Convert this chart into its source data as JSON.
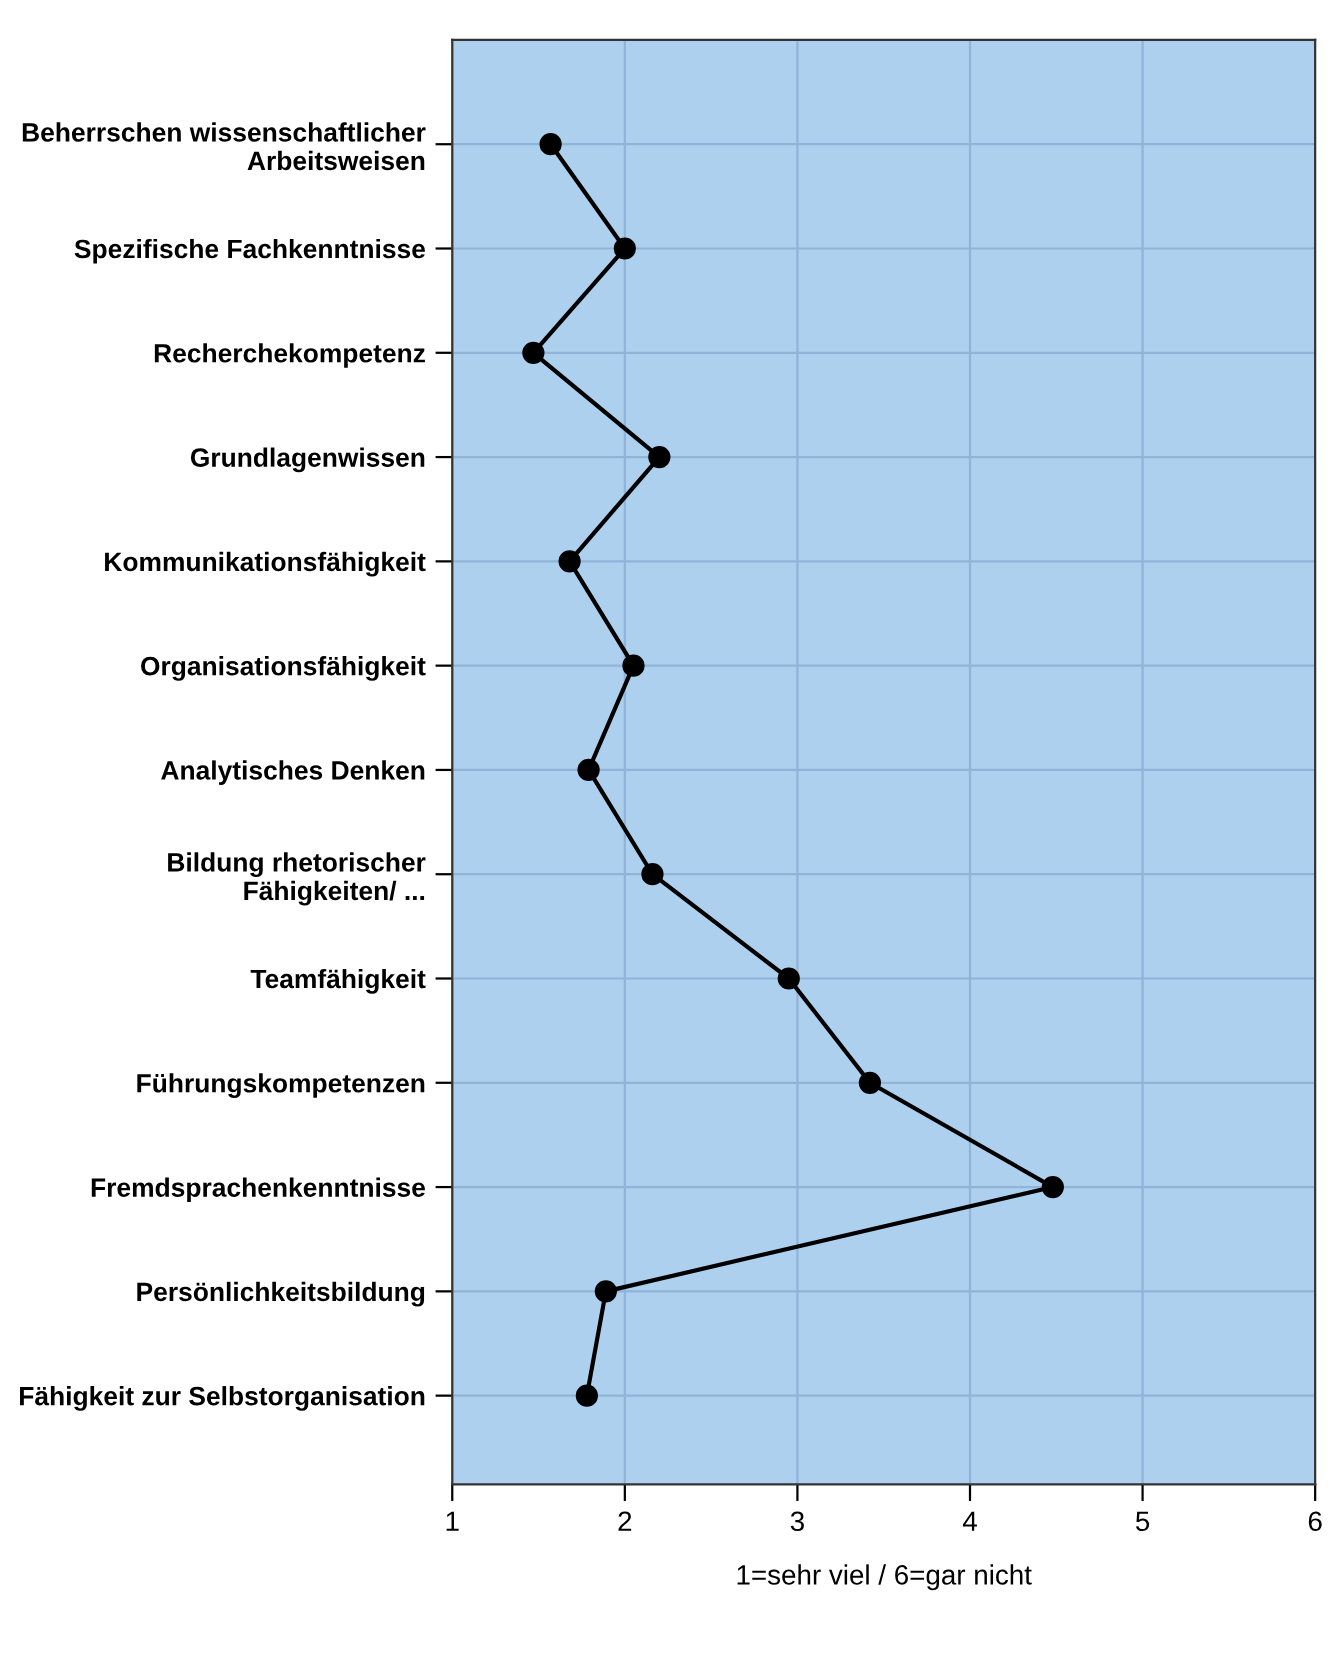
{
  "chart_data": {
    "type": "line",
    "orientation": "horizontal",
    "xlabel": "1=sehr viel / 6=gar nicht",
    "categories": [
      "Beherrschen wissenschaftlicher\nArbeitsweisen",
      "Spezifische Fachkenntnisse",
      "Recherchekompetenz",
      "Grundlagenwissen",
      "Kommunikationsfähigkeit",
      "Organisationsfähigkeit",
      "Analytisches Denken",
      "Bildung rhetorischer\nFähigkeiten/ ...",
      "Teamfähigkeit",
      "Führungskompetenzen",
      "Fremdsprachenkenntnisse",
      "Persönlichkeitsbildung",
      "Fähigkeit zur Selbstorganisation"
    ],
    "series": [
      {
        "color": "#000000",
        "values": [
          1.57,
          2.0,
          1.47,
          2.2,
          1.68,
          2.05,
          1.79,
          2.16,
          2.95,
          3.42,
          4.48,
          1.89,
          1.78
        ]
      }
    ],
    "xlim": [
      1,
      6
    ],
    "xticks": [
      1,
      2,
      3,
      4,
      5,
      6
    ],
    "grid": true,
    "marker": "circle",
    "line_style": "solid"
  }
}
